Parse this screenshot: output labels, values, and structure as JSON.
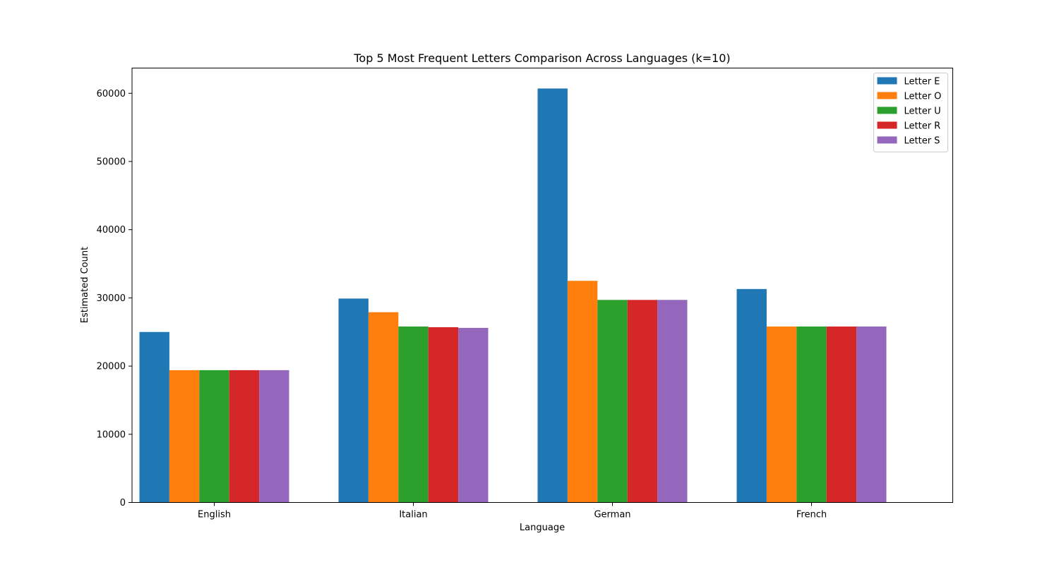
{
  "chart_data": {
    "type": "bar",
    "title": "Top 5 Most Frequent Letters Comparison Across Languages (k=10)",
    "xlabel": "Language",
    "ylabel": "Estimated Count",
    "categories": [
      "English",
      "Italian",
      "German",
      "French"
    ],
    "series": [
      {
        "name": "Letter E",
        "color": "#1f77b4",
        "values": [
          25000,
          29900,
          60700,
          31300
        ]
      },
      {
        "name": "Letter O",
        "color": "#ff7f0e",
        "values": [
          19400,
          27900,
          32500,
          25800
        ]
      },
      {
        "name": "Letter U",
        "color": "#2ca02c",
        "values": [
          19400,
          25800,
          29700,
          25800
        ]
      },
      {
        "name": "Letter R",
        "color": "#d62728",
        "values": [
          19400,
          25700,
          29700,
          25800
        ]
      },
      {
        "name": "Letter S",
        "color": "#9467bd",
        "values": [
          19400,
          25600,
          29700,
          25800
        ]
      }
    ],
    "ylim": [
      0,
      63700
    ],
    "yticks": [
      0,
      10000,
      20000,
      30000,
      40000,
      50000,
      60000
    ],
    "grid": false,
    "legend_position": "top-right"
  }
}
